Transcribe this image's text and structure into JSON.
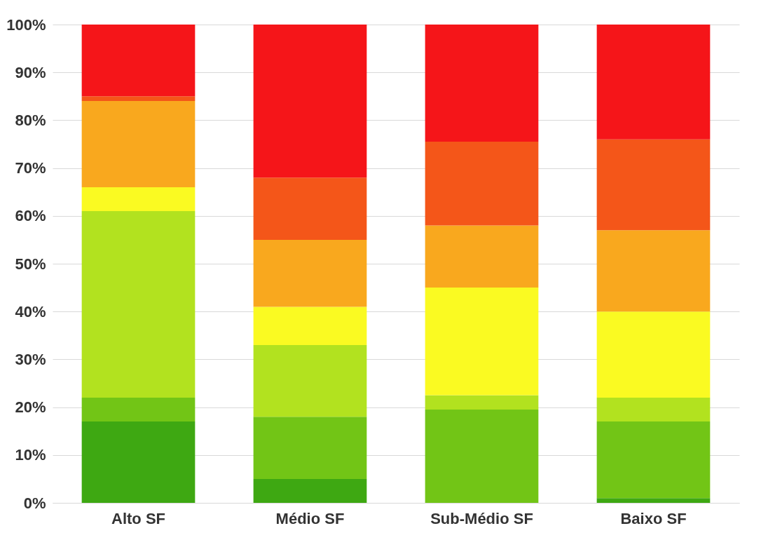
{
  "chart_data": {
    "type": "bar",
    "stacked": true,
    "categories": [
      "Alto SF",
      "Médio SF",
      "Sub-Médio SF",
      "Baixo SF"
    ],
    "series": [
      {
        "color": "#3ea812",
        "values": [
          17,
          5,
          null,
          1
        ]
      },
      {
        "color": "#72c516",
        "values": [
          5,
          13,
          19.5,
          16
        ]
      },
      {
        "color": "#b2e21f",
        "values": [
          39,
          15,
          3,
          5
        ]
      },
      {
        "color": "#fafa22",
        "values": [
          5,
          8,
          22.5,
          18
        ]
      },
      {
        "color": "#f9a81e",
        "values": [
          18,
          14,
          13,
          17
        ]
      },
      {
        "color": "#f45619",
        "values": [
          1,
          13,
          17.5,
          19
        ]
      },
      {
        "color": "#f51519",
        "values": [
          15,
          32,
          24.5,
          24
        ]
      }
    ],
    "ylim": [
      0,
      100
    ],
    "yticks": [
      {
        "value": 0,
        "label": "0%"
      },
      {
        "value": 10,
        "label": "10%"
      },
      {
        "value": 20,
        "label": "20%"
      },
      {
        "value": 30,
        "label": "30%"
      },
      {
        "value": 40,
        "label": "40%"
      },
      {
        "value": 50,
        "label": "50%"
      },
      {
        "value": 60,
        "label": "60%"
      },
      {
        "value": 70,
        "label": "70%"
      },
      {
        "value": 80,
        "label": "80%"
      },
      {
        "value": 90,
        "label": "90%"
      },
      {
        "value": 100,
        "label": "100%"
      }
    ],
    "grid": "y",
    "legend": false
  }
}
